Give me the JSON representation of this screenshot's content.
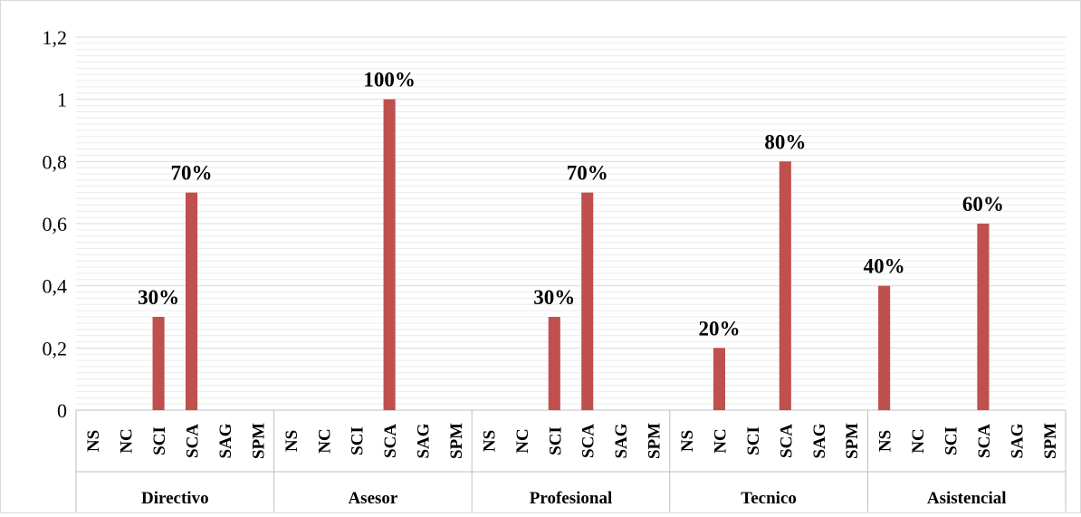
{
  "chart_data": {
    "type": "bar",
    "groups": [
      {
        "name": "Directivo",
        "categories": [
          "NS",
          "NC",
          "SCI",
          "SCA",
          "SAG",
          "SPM"
        ],
        "values": [
          0,
          0,
          0.3,
          0.7,
          0,
          0
        ],
        "labels": [
          "",
          "",
          "30%",
          "70%",
          "",
          ""
        ]
      },
      {
        "name": "Asesor",
        "categories": [
          "NS",
          "NC",
          "SCI",
          "SCA",
          "SAG",
          "SPM"
        ],
        "values": [
          0,
          0,
          0,
          1.0,
          0,
          0
        ],
        "labels": [
          "",
          "",
          "",
          "100%",
          "",
          ""
        ]
      },
      {
        "name": "Profesional",
        "categories": [
          "NS",
          "NC",
          "SCI",
          "SCA",
          "SAG",
          "SPM"
        ],
        "values": [
          0,
          0,
          0.3,
          0.7,
          0,
          0
        ],
        "labels": [
          "",
          "",
          "30%",
          "70%",
          "",
          ""
        ]
      },
      {
        "name": "Tecnico",
        "categories": [
          "NS",
          "NC",
          "SCI",
          "SCA",
          "SAG",
          "SPM"
        ],
        "values": [
          0,
          0.2,
          0,
          0.8,
          0,
          0
        ],
        "labels": [
          "",
          "20%",
          "",
          "80%",
          "",
          ""
        ]
      },
      {
        "name": "Asistencial",
        "categories": [
          "NS",
          "NC",
          "SCI",
          "SCA",
          "SAG",
          "SPM"
        ],
        "values": [
          0.4,
          0,
          0,
          0.6,
          0,
          0
        ],
        "labels": [
          "40%",
          "",
          "",
          "60%",
          "",
          ""
        ]
      }
    ],
    "ylim": [
      0,
      1.2
    ],
    "yticks": [
      "0",
      "0,2",
      "0,4",
      "0,6",
      "0,8",
      "1",
      "1,2"
    ],
    "minor_gridlines": true,
    "bar_color": "#c0504d",
    "grid_color": "#d9d9d9"
  }
}
